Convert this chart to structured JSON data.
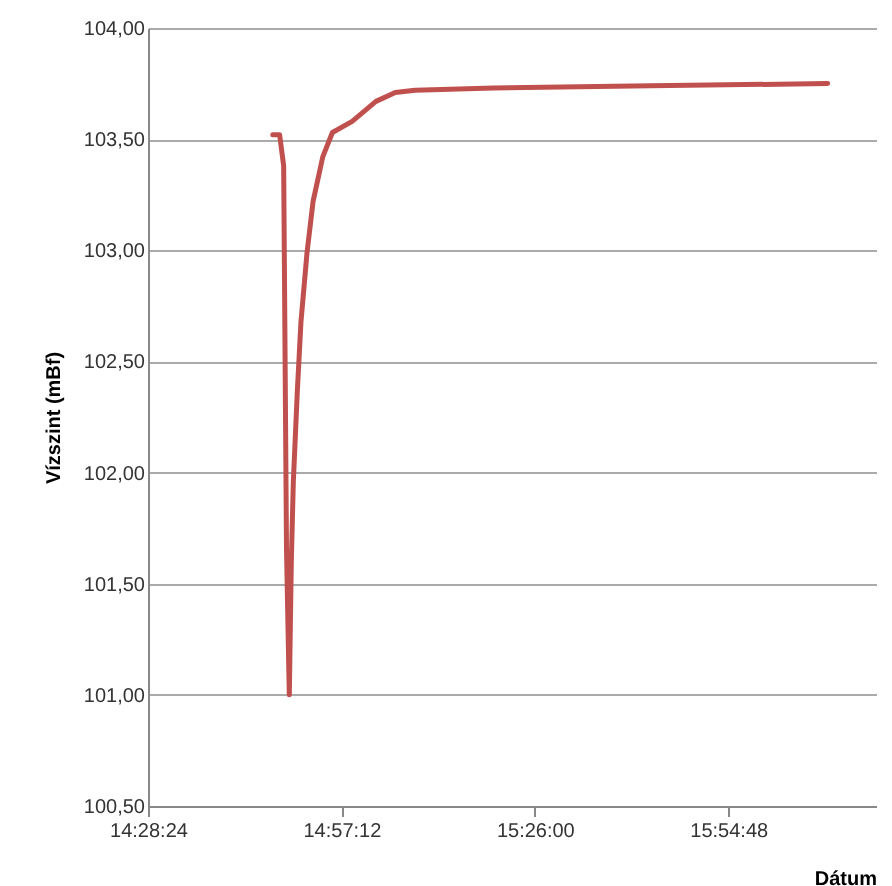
{
  "chart_data": {
    "type": "line",
    "xlabel": "Dátum",
    "ylabel": "Vízszint (mBf)",
    "x": [
      14.783,
      14.8,
      14.81,
      14.817,
      14.824,
      14.829,
      14.834,
      14.844,
      14.853,
      14.868,
      14.883,
      14.907,
      14.931,
      14.98,
      15.039,
      15.087,
      15.136,
      15.331,
      15.721,
      16.16
    ],
    "series": [
      {
        "color": "#c0504d",
        "values": [
          103.52,
          103.52,
          103.38,
          101.66,
          101.0,
          101.6,
          101.96,
          102.37,
          102.68,
          102.99,
          103.22,
          103.42,
          103.53,
          103.58,
          103.67,
          103.71,
          103.72,
          103.73,
          103.74,
          103.75
        ]
      }
    ],
    "xlim": [
      14.47333,
      16.28
    ],
    "ylim": [
      100.5,
      104
    ],
    "xticks": [
      {
        "value": 14.47333,
        "label": "14:28:24"
      },
      {
        "value": 14.95333,
        "label": "14:57:12"
      },
      {
        "value": 15.43333,
        "label": "15:26:00"
      },
      {
        "value": 15.91333,
        "label": "15:54:48"
      }
    ],
    "yticks": [
      {
        "value": 100.5,
        "label": "100,50"
      },
      {
        "value": 101,
        "label": "101,00"
      },
      {
        "value": 101.5,
        "label": "101,50"
      },
      {
        "value": 102,
        "label": "102,00"
      },
      {
        "value": 102.5,
        "label": "102,50"
      },
      {
        "value": 103,
        "label": "103,00"
      },
      {
        "value": 103.5,
        "label": "103,50"
      },
      {
        "value": 104,
        "label": "104,00"
      }
    ],
    "grid": "y",
    "marker": "none",
    "line_style": "solid"
  }
}
